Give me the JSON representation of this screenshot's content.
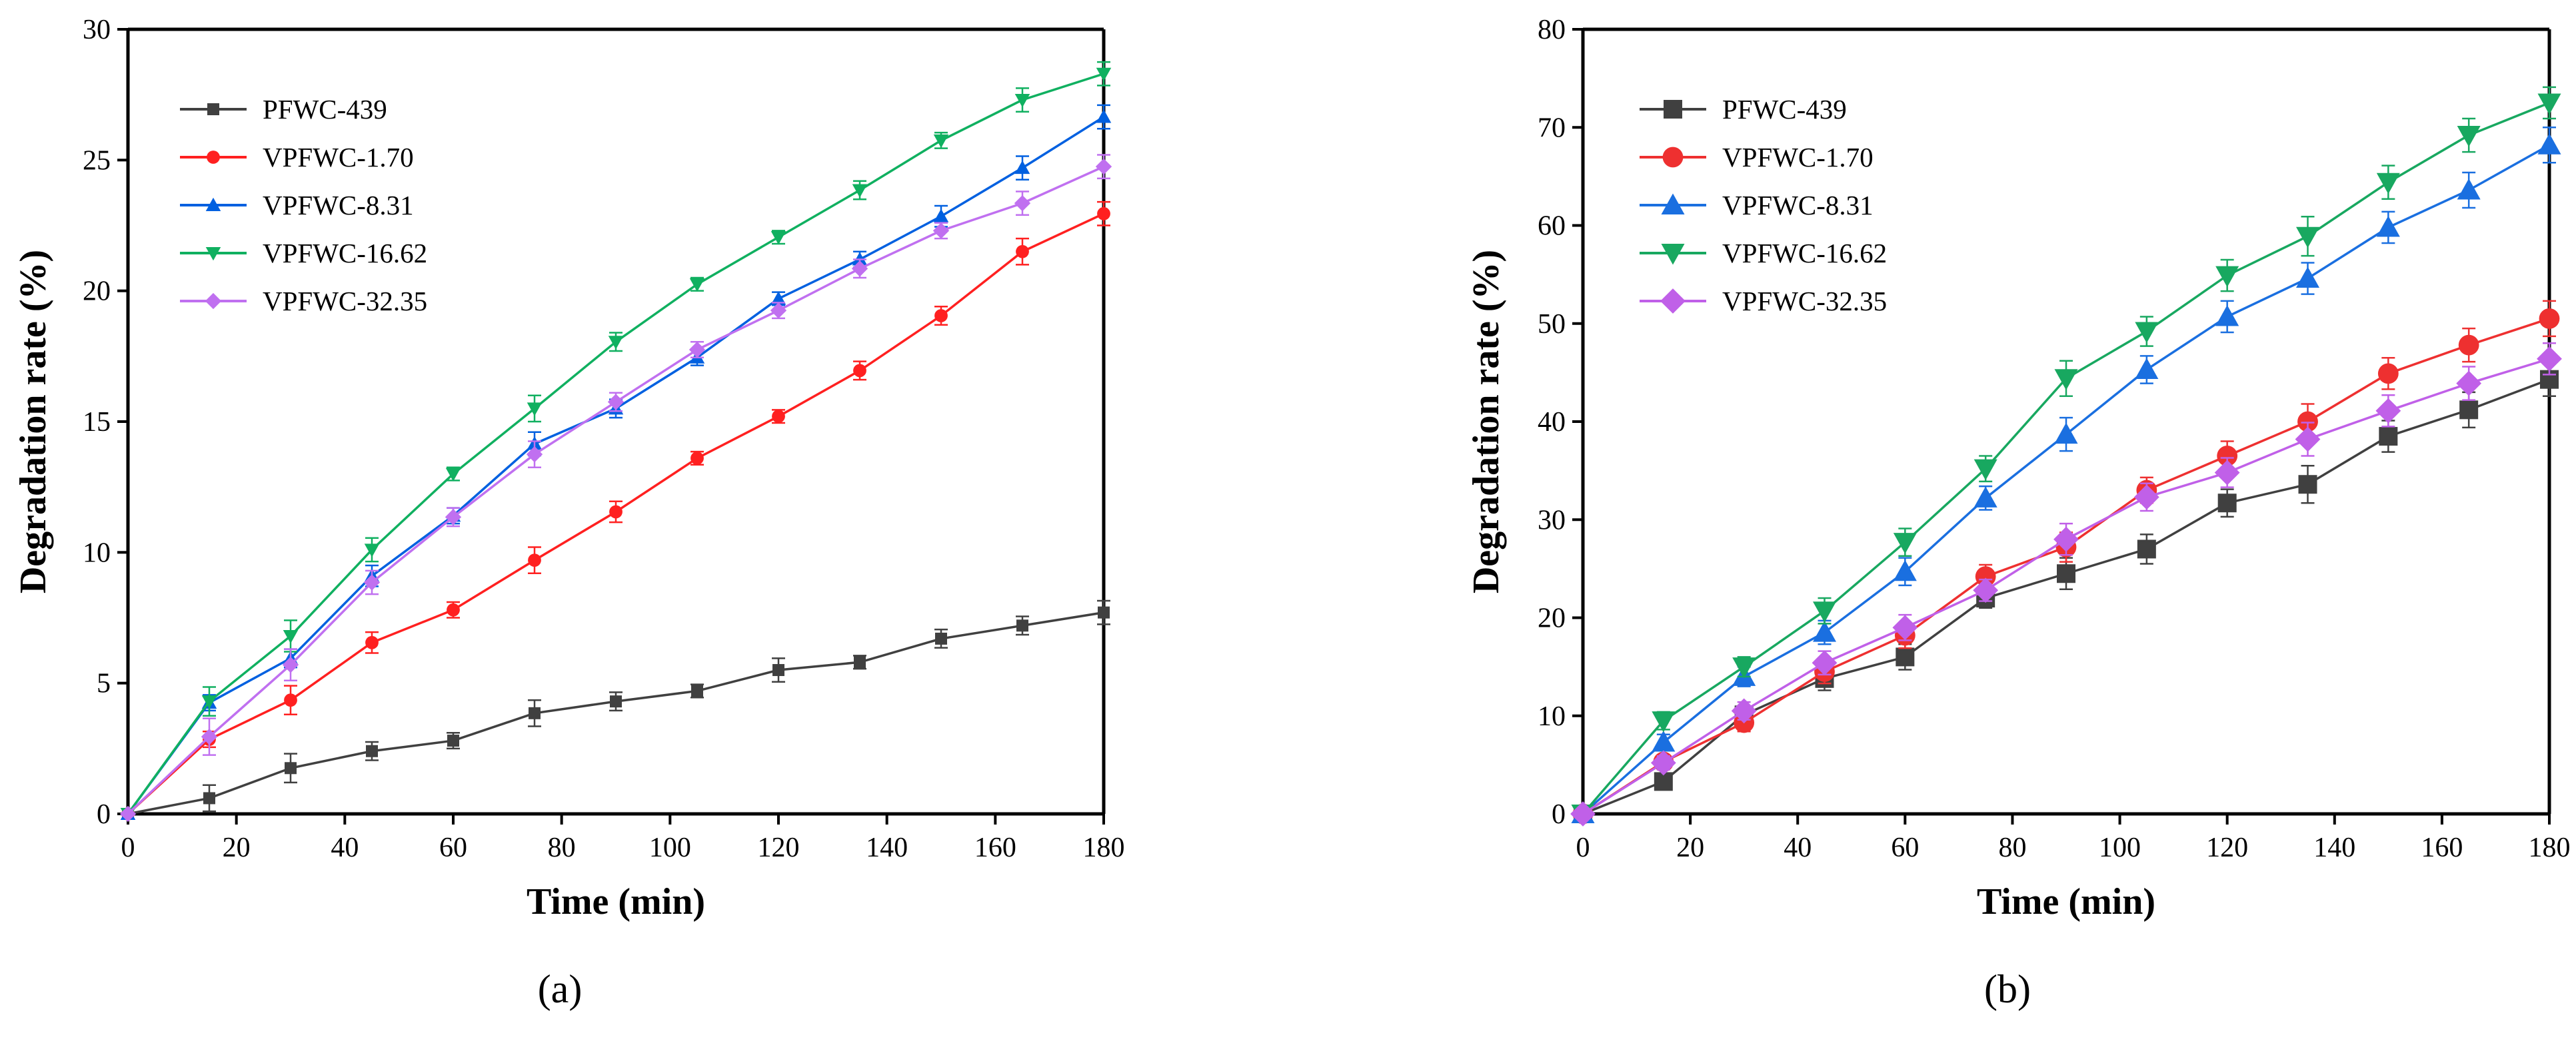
{
  "chart_data": [
    {
      "type": "line",
      "panel_label": "(a)",
      "xlabel": "Time (min)",
      "ylabel": "Degradation rate (%)",
      "xlim": [
        0,
        180
      ],
      "ylim": [
        0,
        30
      ],
      "xticks": [
        0,
        20,
        40,
        60,
        80,
        100,
        120,
        140,
        160,
        180
      ],
      "yticks": [
        0,
        5,
        10,
        15,
        20,
        25,
        30
      ],
      "marker_size": "small",
      "legend_position": "top-left",
      "x": [
        0,
        15,
        30,
        45,
        60,
        75,
        90,
        105,
        120,
        135,
        150,
        165,
        180
      ],
      "series": [
        {
          "name": "PFWC-439",
          "color": "#404040",
          "marker": "square",
          "values": [
            0,
            0.6,
            1.75,
            2.4,
            2.8,
            3.85,
            4.3,
            4.7,
            5.5,
            5.8,
            6.7,
            7.2,
            7.7
          ],
          "errors": [
            0,
            0.5,
            0.55,
            0.35,
            0.3,
            0.5,
            0.35,
            0.25,
            0.45,
            0.25,
            0.35,
            0.35,
            0.45
          ]
        },
        {
          "name": "VPFWC-1.70",
          "color": "#ff2020",
          "marker": "circle",
          "values": [
            0,
            2.85,
            4.35,
            6.55,
            7.8,
            9.7,
            11.55,
            13.6,
            15.2,
            16.95,
            19.05,
            21.5,
            22.95
          ],
          "errors": [
            0,
            0.3,
            0.55,
            0.4,
            0.3,
            0.5,
            0.4,
            0.25,
            0.25,
            0.35,
            0.35,
            0.5,
            0.45
          ]
        },
        {
          "name": "VPFWC-8.31",
          "color": "#0060e0",
          "marker": "triangle-up",
          "values": [
            0,
            4.25,
            5.95,
            9.1,
            11.4,
            14.15,
            15.5,
            17.45,
            19.7,
            21.2,
            22.85,
            24.7,
            26.65
          ],
          "errors": [
            0,
            0.3,
            0.35,
            0.4,
            0.3,
            0.45,
            0.35,
            0.3,
            0.25,
            0.3,
            0.4,
            0.45,
            0.45
          ]
        },
        {
          "name": "VPFWC-16.62",
          "color": "#10b060",
          "marker": "triangle-down",
          "values": [
            0,
            4.3,
            6.8,
            10.1,
            13.0,
            15.5,
            18.05,
            20.25,
            22.05,
            23.85,
            25.75,
            27.3,
            28.3
          ],
          "errors": [
            0,
            0.55,
            0.6,
            0.45,
            0.25,
            0.5,
            0.35,
            0.25,
            0.25,
            0.35,
            0.3,
            0.45,
            0.45
          ]
        },
        {
          "name": "VPFWC-32.35",
          "color": "#c070f0",
          "marker": "diamond",
          "values": [
            0,
            2.95,
            5.7,
            8.85,
            11.35,
            13.75,
            15.75,
            17.75,
            19.25,
            20.85,
            22.3,
            23.35,
            24.75
          ],
          "errors": [
            0,
            0.7,
            0.6,
            0.45,
            0.35,
            0.5,
            0.35,
            0.3,
            0.3,
            0.35,
            0.3,
            0.45,
            0.45
          ]
        }
      ]
    },
    {
      "type": "line",
      "panel_label": "(b)",
      "xlabel": "Time (min)",
      "ylabel": "Degradation rate (%)",
      "xlim": [
        0,
        180
      ],
      "ylim": [
        0,
        80
      ],
      "xticks": [
        0,
        20,
        40,
        60,
        80,
        100,
        120,
        140,
        160,
        180
      ],
      "yticks": [
        0,
        10,
        20,
        30,
        40,
        50,
        60,
        70,
        80
      ],
      "marker_size": "large",
      "legend_position": "top-left",
      "x": [
        0,
        15,
        30,
        45,
        60,
        75,
        90,
        105,
        120,
        135,
        150,
        165,
        180
      ],
      "series": [
        {
          "name": "PFWC-439",
          "color": "#404040",
          "marker": "square",
          "values": [
            0,
            3.3,
            10.1,
            13.8,
            16.0,
            22.0,
            24.5,
            27.0,
            31.7,
            33.6,
            38.5,
            41.2,
            44.3
          ],
          "errors": [
            0,
            0.6,
            0.8,
            1.2,
            1.3,
            1.0,
            1.6,
            1.5,
            1.4,
            1.9,
            1.6,
            1.8,
            1.7
          ]
        },
        {
          "name": "VPFWC-1.70",
          "color": "#ee3030",
          "marker": "circle",
          "values": [
            0,
            5.3,
            9.3,
            14.5,
            18.2,
            24.2,
            27.2,
            33.0,
            36.5,
            40.0,
            44.9,
            47.8,
            50.5
          ],
          "errors": [
            0,
            0.7,
            0.9,
            1.2,
            1.3,
            1.2,
            1.5,
            1.3,
            1.5,
            1.8,
            1.6,
            1.7,
            1.8
          ]
        },
        {
          "name": "VPFWC-8.31",
          "color": "#1a6fe0",
          "marker": "triangle-up",
          "values": [
            0,
            7.3,
            14.0,
            18.5,
            24.7,
            32.2,
            38.7,
            45.3,
            50.7,
            54.6,
            59.8,
            63.6,
            68.2
          ],
          "errors": [
            0,
            0.8,
            1.0,
            1.2,
            1.4,
            1.2,
            1.7,
            1.4,
            1.6,
            1.6,
            1.6,
            1.8,
            1.8
          ]
        },
        {
          "name": "VPFWC-16.62",
          "color": "#18a860",
          "marker": "triangle-down",
          "values": [
            0,
            9.5,
            15.0,
            20.7,
            27.7,
            35.2,
            44.4,
            49.2,
            54.9,
            58.9,
            64.4,
            69.2,
            72.5
          ],
          "errors": [
            0,
            0.9,
            1.0,
            1.3,
            1.4,
            1.3,
            1.8,
            1.5,
            1.6,
            2.0,
            1.7,
            1.7,
            1.6
          ]
        },
        {
          "name": "VPFWC-32.35",
          "color": "#c060e8",
          "marker": "diamond",
          "values": [
            0,
            5.2,
            10.5,
            15.4,
            19.0,
            22.8,
            28.0,
            32.3,
            34.8,
            38.2,
            41.1,
            43.9,
            46.4
          ],
          "errors": [
            0,
            0.7,
            0.9,
            1.2,
            1.3,
            1.1,
            1.6,
            1.4,
            1.5,
            1.7,
            1.6,
            1.7,
            1.6
          ]
        }
      ]
    }
  ]
}
